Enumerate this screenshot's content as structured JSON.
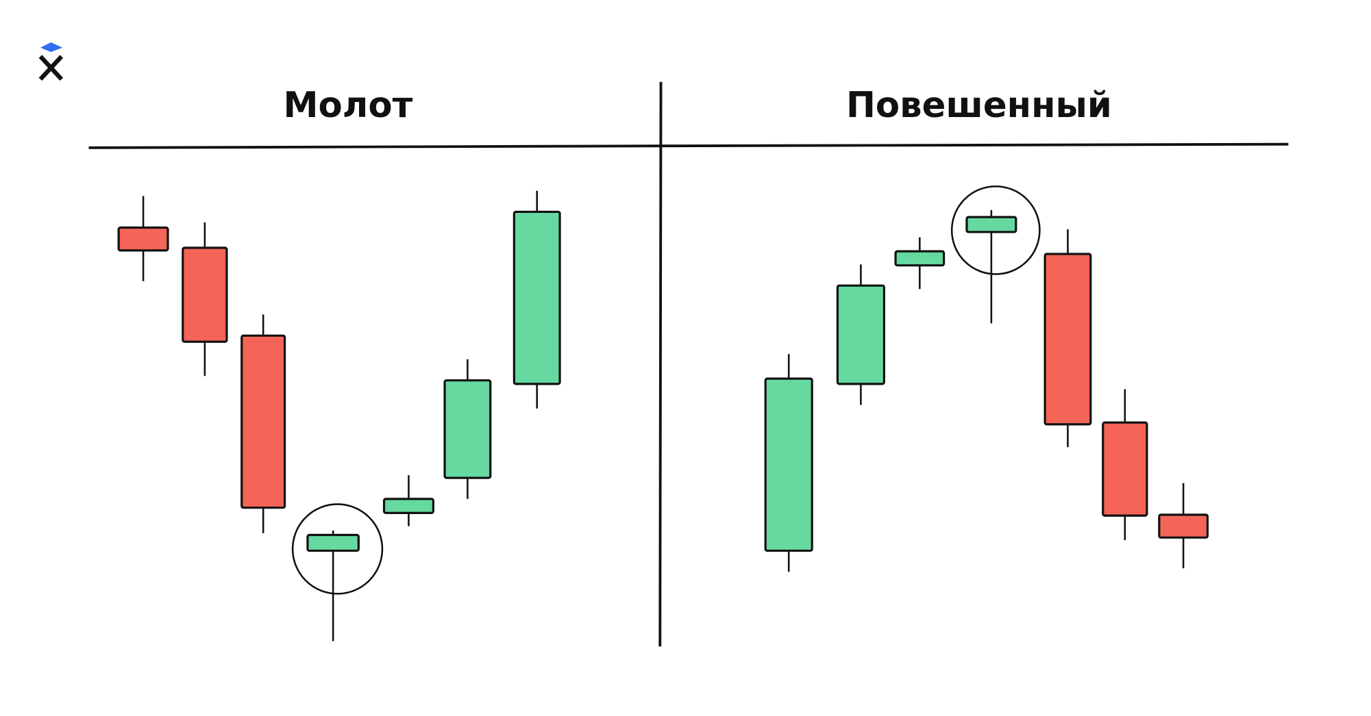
{
  "panels": [
    {
      "title": "Молот"
    },
    {
      "title": "Повешенный"
    }
  ]
}
